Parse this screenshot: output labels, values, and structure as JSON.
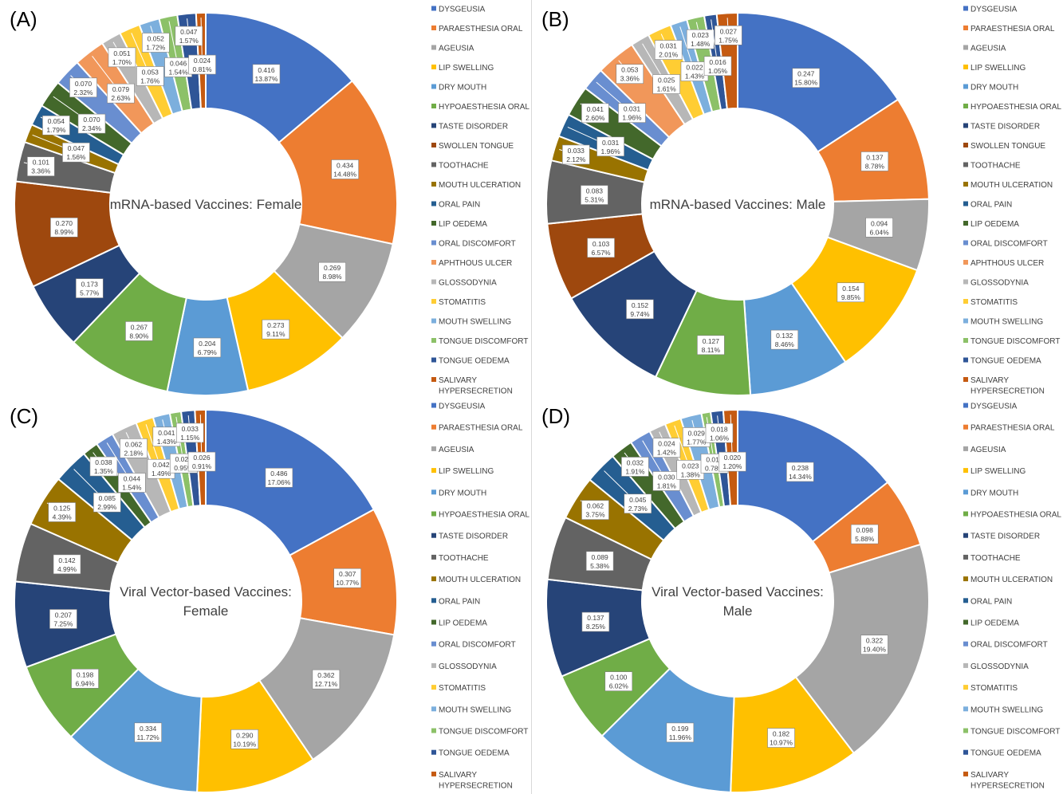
{
  "colors": {
    "DYSGEUSIA": "#4472C4",
    "PARAESTHESIA ORAL": "#ED7D31",
    "AGEUSIA": "#A5A5A5",
    "LIP SWELLING": "#FFC000",
    "DRY MOUTH": "#5B9BD5",
    "HYPOAESTHESIA ORAL": "#70AD47",
    "TASTE DISORDER": "#264478",
    "SWOLLEN TONGUE": "#9E480E",
    "TOOTHACHE": "#636363",
    "MOUTH ULCERATION": "#997300",
    "ORAL PAIN": "#255E91",
    "LIP OEDEMA": "#43682B",
    "ORAL DISCOMFORT": "#698ED0",
    "APHTHOUS ULCER": "#F1975A",
    "GLOSSODYNIA": "#B7B7B7",
    "STOMATITIS": "#FFCD33",
    "MOUTH SWELLING": "#7CAFDD",
    "TONGUE DISCOMFORT": "#8CC168",
    "TONGUE OEDEMA": "#2F5597",
    "SALIVARY HYPERSECRETION": "#C55A11"
  },
  "chart_data": [
    {
      "panel": "(A)",
      "type": "pie",
      "title": "mRNA-based Vaccines: Female",
      "legend": [
        "DYSGEUSIA",
        "PARAESTHESIA ORAL",
        "AGEUSIA",
        "LIP SWELLING",
        "DRY MOUTH",
        "HYPOAESTHESIA ORAL",
        "TASTE DISORDER",
        "SWOLLEN TONGUE",
        "TOOTHACHE",
        "MOUTH ULCERATION",
        "ORAL PAIN",
        "LIP OEDEMA",
        "ORAL DISCOMFORT",
        "APHTHOUS ULCER",
        "GLOSSODYNIA",
        "STOMATITIS",
        "MOUTH SWELLING",
        "TONGUE DISCOMFORT",
        "TONGUE OEDEMA",
        "SALIVARY HYPERSECRETION"
      ],
      "slices": [
        {
          "label": "DYSGEUSIA",
          "value": "0.416",
          "percent": "13.87%"
        },
        {
          "label": "PARAESTHESIA ORAL",
          "value": "0.434",
          "percent": "14.48%"
        },
        {
          "label": "AGEUSIA",
          "value": "0.269",
          "percent": "8.98%"
        },
        {
          "label": "LIP SWELLING",
          "value": "0.273",
          "percent": "9.11%"
        },
        {
          "label": "DRY MOUTH",
          "value": "0.204",
          "percent": "6.79%"
        },
        {
          "label": "HYPOAESTHESIA ORAL",
          "value": "0.267",
          "percent": "8.90%"
        },
        {
          "label": "TASTE DISORDER",
          "value": "0.173",
          "percent": "5.77%"
        },
        {
          "label": "SWOLLEN TONGUE",
          "value": "0.270",
          "percent": "8.99%"
        },
        {
          "label": "TOOTHACHE",
          "value": "0.101",
          "percent": "3.36%"
        },
        {
          "label": "MOUTH ULCERATION",
          "value": "0.047",
          "percent": "1.56%"
        },
        {
          "label": "ORAL PAIN",
          "value": "0.054",
          "percent": "1.79%"
        },
        {
          "label": "LIP OEDEMA",
          "value": "0.070",
          "percent": "2.34%"
        },
        {
          "label": "ORAL DISCOMFORT",
          "value": "0.070",
          "percent": "2.32%"
        },
        {
          "label": "APHTHOUS ULCER",
          "value": "0.079",
          "percent": "2.63%"
        },
        {
          "label": "GLOSSODYNIA",
          "value": "0.051",
          "percent": "1.70%"
        },
        {
          "label": "STOMATITIS",
          "value": "0.053",
          "percent": "1.76%"
        },
        {
          "label": "MOUTH SWELLING",
          "value": "0.052",
          "percent": "1.72%"
        },
        {
          "label": "TONGUE DISCOMFORT",
          "value": "0.046",
          "percent": "1.54%"
        },
        {
          "label": "TONGUE OEDEMA",
          "value": "0.047",
          "percent": "1.57%"
        },
        {
          "label": "SALIVARY HYPERSECRETION",
          "value": "0.024",
          "percent": "0.81%"
        }
      ]
    },
    {
      "panel": "(B)",
      "type": "pie",
      "title": "mRNA-based Vaccines: Male",
      "legend": [
        "DYSGEUSIA",
        "PARAESTHESIA ORAL",
        "AGEUSIA",
        "LIP SWELLING",
        "DRY MOUTH",
        "HYPOAESTHESIA ORAL",
        "TASTE DISORDER",
        "SWOLLEN TONGUE",
        "TOOTHACHE",
        "MOUTH ULCERATION",
        "ORAL PAIN",
        "LIP OEDEMA",
        "ORAL DISCOMFORT",
        "APHTHOUS ULCER",
        "GLOSSODYNIA",
        "STOMATITIS",
        "MOUTH SWELLING",
        "TONGUE DISCOMFORT",
        "TONGUE OEDEMA",
        "SALIVARY HYPERSECRETION"
      ],
      "slices": [
        {
          "label": "DYSGEUSIA",
          "value": "0.247",
          "percent": "15.80%"
        },
        {
          "label": "PARAESTHESIA ORAL",
          "value": "0.137",
          "percent": "8.78%"
        },
        {
          "label": "AGEUSIA",
          "value": "0.094",
          "percent": "6.04%"
        },
        {
          "label": "LIP SWELLING",
          "value": "0.154",
          "percent": "9.85%"
        },
        {
          "label": "DRY MOUTH",
          "value": "0.132",
          "percent": "8.46%"
        },
        {
          "label": "HYPOAESTHESIA ORAL",
          "value": "0.127",
          "percent": "8.11%"
        },
        {
          "label": "TASTE DISORDER",
          "value": "0.152",
          "percent": "9.74%"
        },
        {
          "label": "SWOLLEN TONGUE",
          "value": "0.103",
          "percent": "6.57%"
        },
        {
          "label": "TOOTHACHE",
          "value": "0.083",
          "percent": "5.31%"
        },
        {
          "label": "MOUTH ULCERATION",
          "value": "0.033",
          "percent": "2.12%"
        },
        {
          "label": "ORAL PAIN",
          "value": "0.031",
          "percent": "1.96%"
        },
        {
          "label": "LIP OEDEMA",
          "value": "0.041",
          "percent": "2.60%"
        },
        {
          "label": "ORAL DISCOMFORT",
          "value": "0.031",
          "percent": "1.96%"
        },
        {
          "label": "APHTHOUS ULCER",
          "value": "0.053",
          "percent": "3.36%"
        },
        {
          "label": "GLOSSODYNIA",
          "value": "0.025",
          "percent": "1.61%"
        },
        {
          "label": "STOMATITIS",
          "value": "0.031",
          "percent": "2.01%"
        },
        {
          "label": "MOUTH SWELLING",
          "value": "0.022",
          "percent": "1.43%"
        },
        {
          "label": "TONGUE DISCOMFORT",
          "value": "0.023",
          "percent": "1.48%"
        },
        {
          "label": "TONGUE OEDEMA",
          "value": "0.016",
          "percent": "1.05%"
        },
        {
          "label": "SALIVARY HYPERSECRETION",
          "value": "0.027",
          "percent": "1.75%"
        }
      ]
    },
    {
      "panel": "(C)",
      "type": "pie",
      "title": "Viral Vector-based Vaccines: Female",
      "legend": [
        "DYSGEUSIA",
        "PARAESTHESIA ORAL",
        "AGEUSIA",
        "LIP SWELLING",
        "DRY MOUTH",
        "HYPOAESTHESIA ORAL",
        "TASTE DISORDER",
        "TOOTHACHE",
        "MOUTH ULCERATION",
        "ORAL PAIN",
        "LIP OEDEMA",
        "ORAL DISCOMFORT",
        "GLOSSODYNIA",
        "STOMATITIS",
        "MOUTH SWELLING",
        "TONGUE DISCOMFORT",
        "TONGUE OEDEMA",
        "SALIVARY HYPERSECRETION"
      ],
      "slices": [
        {
          "label": "DYSGEUSIA",
          "value": "0.486",
          "percent": "17.06%"
        },
        {
          "label": "PARAESTHESIA ORAL",
          "value": "0.307",
          "percent": "10.77%"
        },
        {
          "label": "AGEUSIA",
          "value": "0.362",
          "percent": "12.71%"
        },
        {
          "label": "LIP SWELLING",
          "value": "0.290",
          "percent": "10.19%"
        },
        {
          "label": "DRY MOUTH",
          "value": "0.334",
          "percent": "11.72%"
        },
        {
          "label": "HYPOAESTHESIA ORAL",
          "value": "0.198",
          "percent": "6.94%"
        },
        {
          "label": "TASTE DISORDER",
          "value": "0.207",
          "percent": "7.25%"
        },
        {
          "label": "TOOTHACHE",
          "value": "0.142",
          "percent": "4.99%"
        },
        {
          "label": "MOUTH ULCERATION",
          "value": "0.125",
          "percent": "4.39%"
        },
        {
          "label": "ORAL PAIN",
          "value": "0.085",
          "percent": "2.99%"
        },
        {
          "label": "LIP OEDEMA",
          "value": "0.038",
          "percent": "1.35%"
        },
        {
          "label": "ORAL DISCOMFORT",
          "value": "0.044",
          "percent": "1.54%"
        },
        {
          "label": "GLOSSODYNIA",
          "value": "0.062",
          "percent": "2.18%"
        },
        {
          "label": "STOMATITIS",
          "value": "0.042",
          "percent": "1.49%"
        },
        {
          "label": "MOUTH SWELLING",
          "value": "0.041",
          "percent": "1.43%"
        },
        {
          "label": "TONGUE DISCOMFORT",
          "value": "0.027",
          "percent": "0.95%"
        },
        {
          "label": "TONGUE OEDEMA",
          "value": "0.033",
          "percent": "1.15%"
        },
        {
          "label": "SALIVARY HYPERSECRETION",
          "value": "0.026",
          "percent": "0.91%"
        }
      ]
    },
    {
      "panel": "(D)",
      "type": "pie",
      "title": "Viral Vector-based Vaccines: Male",
      "legend": [
        "DYSGEUSIA",
        "PARAESTHESIA ORAL",
        "AGEUSIA",
        "LIP SWELLING",
        "DRY MOUTH",
        "HYPOAESTHESIA ORAL",
        "TASTE DISORDER",
        "TOOTHACHE",
        "MOUTH ULCERATION",
        "ORAL PAIN",
        "LIP OEDEMA",
        "ORAL DISCOMFORT",
        "GLOSSODYNIA",
        "STOMATITIS",
        "MOUTH SWELLING",
        "TONGUE DISCOMFORT",
        "TONGUE OEDEMA",
        "SALIVARY HYPERSECRETION"
      ],
      "slices": [
        {
          "label": "DYSGEUSIA",
          "value": "0.238",
          "percent": "14.34%"
        },
        {
          "label": "PARAESTHESIA ORAL",
          "value": "0.098",
          "percent": "5.88%"
        },
        {
          "label": "AGEUSIA",
          "value": "0.322",
          "percent": "19.40%"
        },
        {
          "label": "LIP SWELLING",
          "value": "0.182",
          "percent": "10.97%"
        },
        {
          "label": "DRY MOUTH",
          "value": "0.199",
          "percent": "11.96%"
        },
        {
          "label": "HYPOAESTHESIA ORAL",
          "value": "0.100",
          "percent": "6.02%"
        },
        {
          "label": "TASTE DISORDER",
          "value": "0.137",
          "percent": "8.25%"
        },
        {
          "label": "TOOTHACHE",
          "value": "0.089",
          "percent": "5.38%"
        },
        {
          "label": "MOUTH ULCERATION",
          "value": "0.062",
          "percent": "3.75%"
        },
        {
          "label": "ORAL PAIN",
          "value": "0.045",
          "percent": "2.73%"
        },
        {
          "label": "LIP OEDEMA",
          "value": "0.032",
          "percent": "1.91%"
        },
        {
          "label": "ORAL DISCOMFORT",
          "value": "0.030",
          "percent": "1.81%"
        },
        {
          "label": "GLOSSODYNIA",
          "value": "0.024",
          "percent": "1.42%"
        },
        {
          "label": "STOMATITIS",
          "value": "0.023",
          "percent": "1.38%"
        },
        {
          "label": "MOUTH SWELLING",
          "value": "0.029",
          "percent": "1.77%"
        },
        {
          "label": "TONGUE DISCOMFORT",
          "value": "0.013",
          "percent": "0.78%"
        },
        {
          "label": "TONGUE OEDEMA",
          "value": "0.018",
          "percent": "1.06%"
        },
        {
          "label": "SALIVARY HYPERSECRETION",
          "value": "0.020",
          "percent": "1.20%"
        }
      ]
    }
  ]
}
